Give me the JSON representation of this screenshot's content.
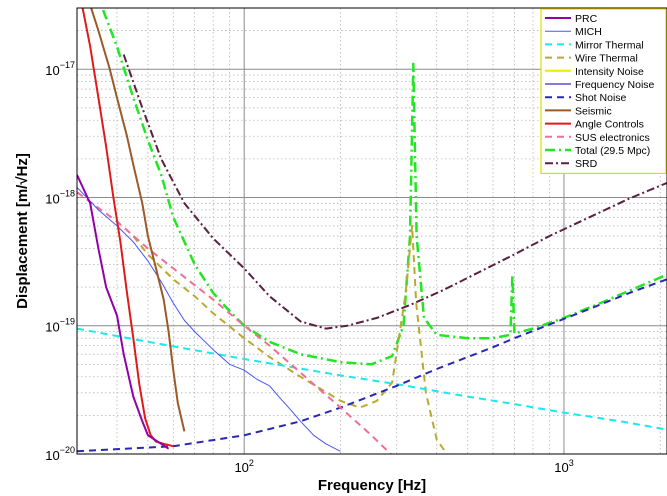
{
  "chart_data": {
    "type": "line",
    "title": "",
    "xlabel": "Frequency [Hz]",
    "ylabel": "Displacement [m/√Hz]",
    "xscale": "log",
    "yscale": "log",
    "xlim": [
      30,
      2100
    ],
    "ylim": [
      1e-20,
      3e-17
    ],
    "grid": true,
    "legend_position": "top-right",
    "x_ticks": [
      {
        "value": 100,
        "base": "10",
        "exp": "2"
      },
      {
        "value": 1000,
        "base": "10",
        "exp": "3"
      }
    ],
    "y_ticks": [
      {
        "value": 1e-20,
        "base": "10",
        "exp": "−20"
      },
      {
        "value": 1e-19,
        "base": "10",
        "exp": "−19"
      },
      {
        "value": 1e-18,
        "base": "10",
        "exp": "−18"
      },
      {
        "value": 1e-17,
        "base": "10",
        "exp": "−17"
      }
    ],
    "series": [
      {
        "name": "PRC",
        "color": "#9400a8",
        "dash": "solid",
        "width": 2,
        "points": [
          [
            30,
            1.5e-18
          ],
          [
            33,
            9e-19
          ],
          [
            35,
            4e-19
          ],
          [
            37,
            2e-19
          ],
          [
            40,
            1.2e-19
          ],
          [
            42,
            6e-20
          ],
          [
            45,
            2.8e-20
          ],
          [
            48,
            1.8e-20
          ],
          [
            50,
            1.4e-20
          ],
          [
            55,
            1.2e-20
          ],
          [
            58,
            1.1e-20
          ]
        ]
      },
      {
        "name": "MICH",
        "color": "#4a56f0",
        "dash": "solid",
        "width": 1,
        "points": [
          [
            30,
            1.2e-18
          ],
          [
            35,
            8e-19
          ],
          [
            40,
            6e-19
          ],
          [
            45,
            4.5e-19
          ],
          [
            50,
            3.2e-19
          ],
          [
            55,
            2.2e-19
          ],
          [
            60,
            1.5e-19
          ],
          [
            65,
            1.1e-19
          ],
          [
            70,
            9e-20
          ],
          [
            80,
            6.5e-20
          ],
          [
            90,
            5e-20
          ],
          [
            100,
            4.5e-20
          ],
          [
            110,
            3.8e-20
          ],
          [
            120,
            3.4e-20
          ],
          [
            130,
            2.7e-20
          ],
          [
            140,
            2.2e-20
          ],
          [
            150,
            1.8e-20
          ],
          [
            165,
            1.4e-20
          ],
          [
            180,
            1.2e-20
          ],
          [
            200,
            1.05e-20
          ]
        ]
      },
      {
        "name": "Mirror Thermal",
        "color": "#19e8f0",
        "dash": "7,5",
        "width": 2,
        "points": [
          [
            30,
            9.5e-20
          ],
          [
            50,
            7.5e-20
          ],
          [
            100,
            5.5e-20
          ],
          [
            200,
            4.1e-20
          ],
          [
            300,
            3.5e-20
          ],
          [
            500,
            2.8e-20
          ],
          [
            700,
            2.45e-20
          ],
          [
            1000,
            2.1e-20
          ],
          [
            1500,
            1.8e-20
          ],
          [
            2100,
            1.55e-20
          ]
        ]
      },
      {
        "name": "Wire Thermal",
        "color": "#b8aa30",
        "dash": "7,5",
        "width": 2,
        "points": [
          [
            45,
            5e-19
          ],
          [
            50,
            3.6e-19
          ],
          [
            60,
            2.3e-19
          ],
          [
            70,
            1.7e-19
          ],
          [
            80,
            1.25e-19
          ],
          [
            100,
            8e-20
          ],
          [
            120,
            5.7e-20
          ],
          [
            150,
            4e-20
          ],
          [
            200,
            2.6e-20
          ],
          [
            230,
            2.3e-20
          ],
          [
            260,
            2.6e-20
          ],
          [
            290,
            3.6e-20
          ],
          [
            320,
            1.8e-19
          ],
          [
            335,
            6e-19
          ],
          [
            345,
            1.5e-19
          ],
          [
            370,
            3e-20
          ],
          [
            400,
            1.3e-20
          ],
          [
            430,
            1e-20
          ]
        ]
      },
      {
        "name": "Intensity Noise",
        "color": "#f0e800",
        "dash": "solid",
        "width": 2,
        "points": []
      },
      {
        "name": "Frequency Noise",
        "color": "#8c78d8",
        "dash": "solid",
        "width": 2,
        "points": []
      },
      {
        "name": "Shot Noise",
        "color": "#2828b4",
        "dash": "7,5",
        "width": 2,
        "points": [
          [
            30,
            1.05e-20
          ],
          [
            60,
            1.15e-20
          ],
          [
            100,
            1.4e-20
          ],
          [
            150,
            1.8e-20
          ],
          [
            200,
            2.3e-20
          ],
          [
            300,
            3.4e-20
          ],
          [
            400,
            4.6e-20
          ],
          [
            500,
            5.7e-20
          ],
          [
            600,
            6.8e-20
          ],
          [
            700,
            8e-20
          ],
          [
            900,
            1.02e-19
          ],
          [
            1200,
            1.35e-19
          ],
          [
            1600,
            1.8e-19
          ],
          [
            2100,
            2.3e-19
          ]
        ]
      },
      {
        "name": "Seismic",
        "color": "#9b5a28",
        "dash": "solid",
        "width": 2,
        "points": [
          [
            32,
            4e-17
          ],
          [
            35,
            2e-17
          ],
          [
            38,
            1e-17
          ],
          [
            40,
            6e-18
          ],
          [
            43,
            3e-18
          ],
          [
            45,
            1.8e-18
          ],
          [
            48,
            9e-19
          ],
          [
            50,
            5e-19
          ],
          [
            53,
            2.8e-19
          ],
          [
            56,
            1.6e-19
          ],
          [
            58,
            9e-20
          ],
          [
            60,
            4.5e-20
          ],
          [
            62,
            2.5e-20
          ],
          [
            65,
            1.5e-20
          ]
        ]
      },
      {
        "name": "Angle Controls",
        "color": "#e01a1a",
        "dash": "solid",
        "width": 2,
        "points": [
          [
            30,
            5e-17
          ],
          [
            33,
            1.5e-17
          ],
          [
            35,
            6e-18
          ],
          [
            37,
            2.5e-18
          ],
          [
            39,
            1e-18
          ],
          [
            41,
            4.5e-19
          ],
          [
            43,
            1.8e-19
          ],
          [
            45,
            8e-20
          ],
          [
            47,
            3.5e-20
          ],
          [
            49,
            1.9e-20
          ],
          [
            51,
            1.4e-20
          ],
          [
            53,
            1.25e-20
          ],
          [
            56,
            1.2e-20
          ],
          [
            60,
            1.15e-20
          ]
        ]
      },
      {
        "name": "SUS electronics",
        "color": "#f06e96",
        "dash": "7,5",
        "width": 2,
        "points": [
          [
            30,
            1.1e-18
          ],
          [
            40,
            6.5e-19
          ],
          [
            50,
            4e-19
          ],
          [
            60,
            2.8e-19
          ],
          [
            80,
            1.6e-19
          ],
          [
            100,
            1e-19
          ],
          [
            120,
            7e-20
          ],
          [
            150,
            4.3e-20
          ],
          [
            200,
            2.3e-20
          ],
          [
            250,
            1.4e-20
          ],
          [
            300,
            9e-21
          ]
        ]
      },
      {
        "name": "Total (29.5 Mpc)",
        "color": "#22e622",
        "dash": "10,4,2,4",
        "width": 2.5,
        "points": [
          [
            34,
            4e-17
          ],
          [
            36,
            3e-17
          ],
          [
            40,
            1.5e-17
          ],
          [
            45,
            6e-18
          ],
          [
            50,
            2.8e-18
          ],
          [
            55,
            1.5e-18
          ],
          [
            60,
            7e-19
          ],
          [
            70,
            3e-19
          ],
          [
            80,
            1.8e-19
          ],
          [
            90,
            1.3e-19
          ],
          [
            100,
            1e-19
          ],
          [
            120,
            7.5e-20
          ],
          [
            150,
            6e-20
          ],
          [
            200,
            5.2e-20
          ],
          [
            250,
            5e-20
          ],
          [
            290,
            5.8e-20
          ],
          [
            315,
            1e-19
          ],
          [
            330,
            5e-19
          ],
          [
            338,
            1.1e-17
          ],
          [
            346,
            5e-19
          ],
          [
            365,
            1.15e-19
          ],
          [
            400,
            8.5e-20
          ],
          [
            500,
            8e-20
          ],
          [
            600,
            8e-20
          ],
          [
            680,
            8.5e-20
          ],
          [
            690,
            2.5e-19
          ],
          [
            700,
            8.7e-20
          ],
          [
            800,
            9.5e-20
          ],
          [
            1000,
            1.15e-19
          ],
          [
            1300,
            1.5e-19
          ],
          [
            1700,
            2e-19
          ],
          [
            2100,
            2.5e-19
          ]
        ]
      },
      {
        "name": "SRD",
        "color": "#5a2040",
        "dash": "8,3,2,3",
        "width": 2,
        "points": [
          [
            42,
            1.3e-17
          ],
          [
            48,
            5e-18
          ],
          [
            55,
            2e-18
          ],
          [
            65,
            9e-19
          ],
          [
            80,
            4.8e-19
          ],
          [
            100,
            2.8e-19
          ],
          [
            120,
            1.7e-19
          ],
          [
            150,
            1.08e-19
          ],
          [
            180,
            9.5e-20
          ],
          [
            210,
            1e-19
          ],
          [
            260,
            1.15e-19
          ],
          [
            330,
            1.45e-19
          ],
          [
            420,
            1.9e-19
          ],
          [
            540,
            2.6e-19
          ],
          [
            700,
            3.6e-19
          ],
          [
            900,
            5e-19
          ],
          [
            1200,
            7e-19
          ],
          [
            1600,
            9.8e-19
          ],
          [
            2100,
            1.3e-18
          ]
        ]
      }
    ]
  }
}
